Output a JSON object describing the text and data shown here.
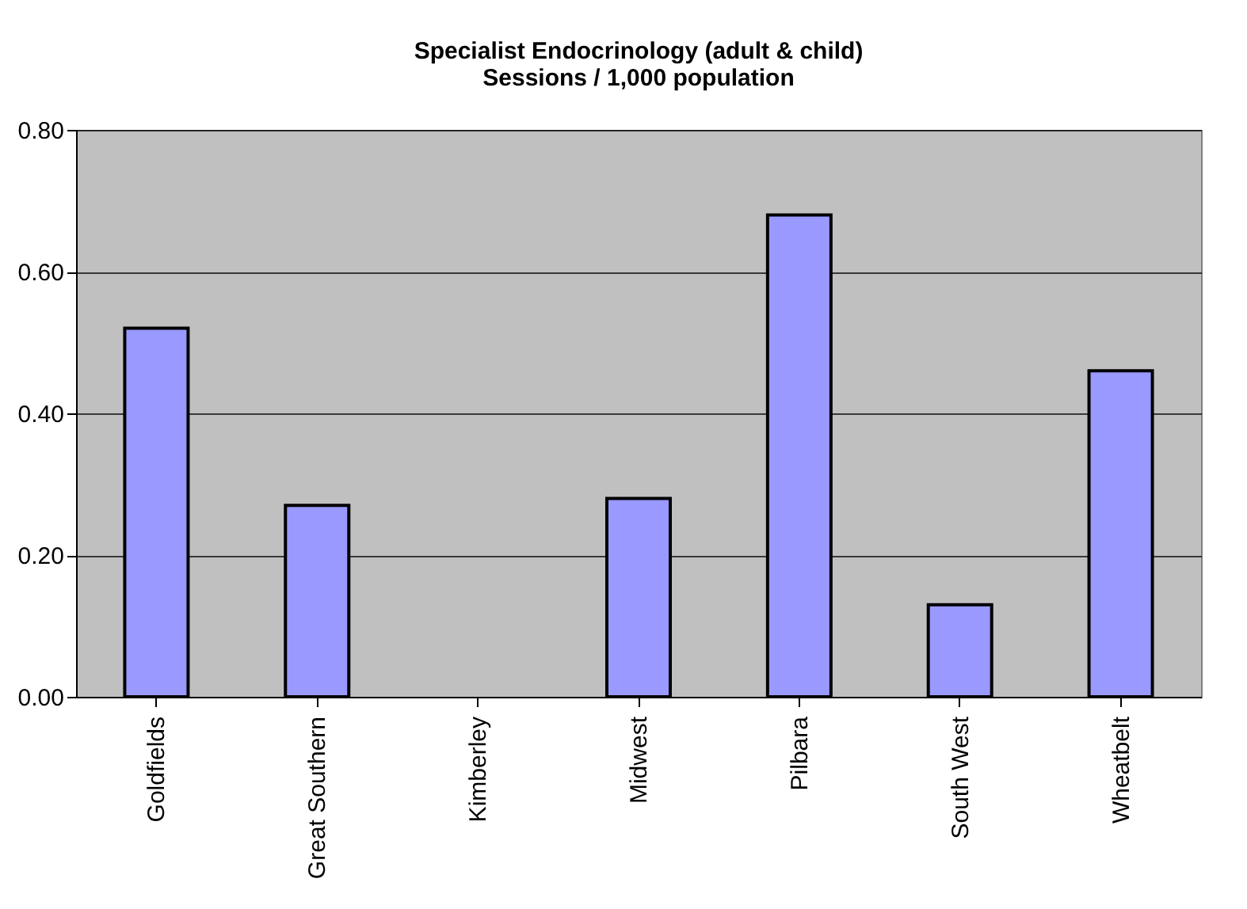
{
  "chart_data": {
    "type": "bar",
    "title": "Specialist Endocrinology (adult & child)",
    "subtitle": "Sessions / 1,000 population",
    "categories": [
      "Goldfields",
      "Great Southern",
      "Kimberley",
      "Midwest",
      "Pilbara",
      "South West",
      "Wheatbelt"
    ],
    "values": [
      0.52,
      0.27,
      0,
      0.28,
      0.68,
      0.13,
      0.46
    ],
    "color": "#9999ff",
    "ylim": [
      0,
      0.8
    ],
    "yticks": [
      {
        "value": 0,
        "label": "0.00"
      },
      {
        "value": 0.2,
        "label": "0.20"
      },
      {
        "value": 0.4,
        "label": "0.40"
      },
      {
        "value": 0.6,
        "label": "0.60"
      },
      {
        "value": 0.8,
        "label": "0.80"
      }
    ],
    "grid": "y"
  }
}
